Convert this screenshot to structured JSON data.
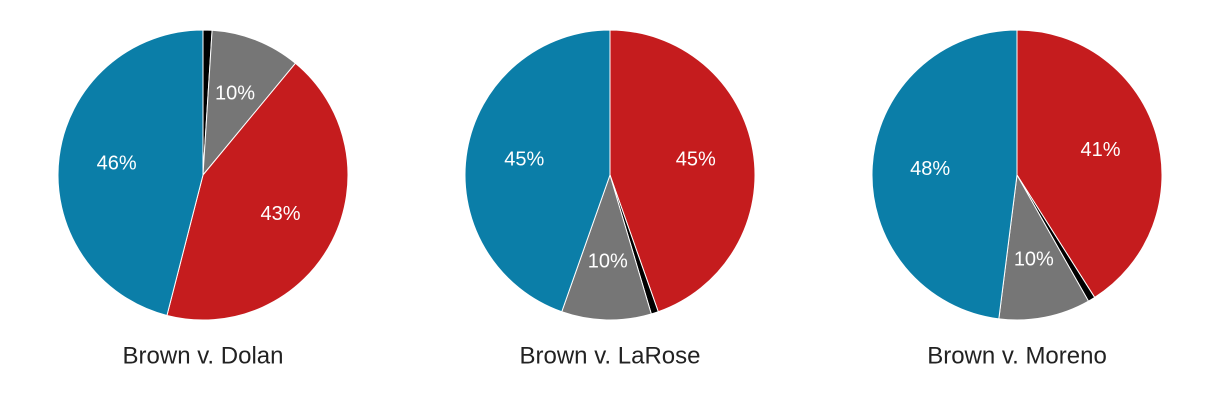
{
  "chart_data": [
    {
      "type": "pie",
      "title": "Brown v. Dolan",
      "values": [
        1,
        10,
        43,
        46
      ],
      "value_labels": [
        null,
        "10%",
        "43%",
        "46%"
      ],
      "colors": [
        "#000000",
        "#767676",
        "#c51c1e",
        "#0b7ea8"
      ]
    },
    {
      "type": "pie",
      "title": "Brown v. LaRose",
      "values": [
        44.6,
        0.8,
        10,
        44.6
      ],
      "value_labels": [
        "45%",
        null,
        "10%",
        "45%"
      ],
      "colors": [
        "#c51c1e",
        "#000000",
        "#767676",
        "#0b7ea8"
      ]
    },
    {
      "type": "pie",
      "title": "Brown v. Moreno",
      "values": [
        41,
        0.8,
        10.2,
        48
      ],
      "value_labels": [
        "41%",
        null,
        "10%",
        "48%"
      ],
      "colors": [
        "#c51c1e",
        "#000000",
        "#767676",
        "#0b7ea8"
      ]
    }
  ]
}
